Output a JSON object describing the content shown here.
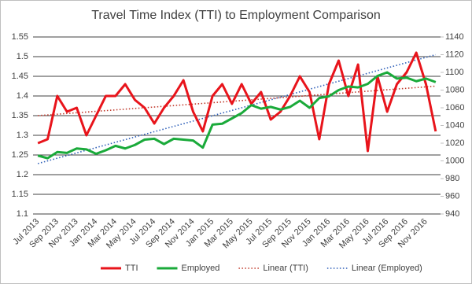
{
  "chart_data": {
    "type": "line",
    "title": "Travel Time Index (TTI) to Employment Comparison",
    "categories": [
      "Jul 2013",
      null,
      "Sep 2013",
      null,
      "Nov 2013",
      null,
      "Jan 2014",
      null,
      "Mar 2014",
      null,
      "May 2014",
      null,
      "Jul 2014",
      null,
      "Sep 2014",
      null,
      "Nov 2014",
      null,
      "Jan 2015",
      null,
      "Mar 2015",
      null,
      "May 2015",
      null,
      "Jul 2015",
      null,
      "Sep 2015",
      null,
      "Nov 2015",
      null,
      "Jan 2016",
      null,
      "Mar 2016",
      null,
      "May 2016",
      null,
      "Jul 2016",
      null,
      "Sep 2016",
      null,
      "Nov 2016",
      null
    ],
    "series": [
      {
        "name": "TTI",
        "color": "#e8141b",
        "axis": "y",
        "values": [
          1.28,
          1.29,
          1.4,
          1.36,
          1.37,
          1.3,
          1.35,
          1.4,
          1.4,
          1.43,
          1.39,
          1.37,
          1.33,
          1.37,
          1.4,
          1.44,
          1.36,
          1.31,
          1.4,
          1.43,
          1.38,
          1.43,
          1.38,
          1.41,
          1.34,
          1.36,
          1.4,
          1.45,
          1.41,
          1.29,
          1.43,
          1.49,
          1.4,
          1.48,
          1.26,
          1.45,
          1.36,
          1.43,
          1.46,
          1.51,
          1.43,
          1.31
        ]
      },
      {
        "name": "Employed",
        "color": "#1aaa3a",
        "axis": "y2",
        "values": [
          1006,
          1003,
          1010,
          1009,
          1014,
          1013,
          1008,
          1012,
          1017,
          1014,
          1018,
          1024,
          1025,
          1019,
          1025,
          1024,
          1023,
          1015,
          1041,
          1042,
          1048,
          1054,
          1063,
          1059,
          1061,
          1058,
          1061,
          1068,
          1060,
          1071,
          1073,
          1080,
          1084,
          1083,
          1087,
          1096,
          1100,
          1093,
          1094,
          1090,
          1093,
          1089
        ]
      }
    ],
    "trendlines": [
      {
        "name": "Linear (TTI)",
        "color": "#c0392b",
        "axis": "y",
        "values": [
          1.35,
          1.425
        ]
      },
      {
        "name": "Linear (Employed)",
        "color": "#2e5fb8",
        "axis": "y2",
        "values": [
          997,
          1120
        ]
      }
    ],
    "ylim": [
      1.1,
      1.55
    ],
    "yticks": [
      1.1,
      1.15,
      1.2,
      1.25,
      1.3,
      1.35,
      1.4,
      1.45,
      1.5,
      1.55
    ],
    "y2lim": [
      940,
      1140
    ],
    "y2ticks": [
      940,
      960,
      980,
      1000,
      1020,
      1040,
      1060,
      1080,
      1100,
      1120,
      1140
    ],
    "grid": true,
    "legend": "bottom"
  }
}
